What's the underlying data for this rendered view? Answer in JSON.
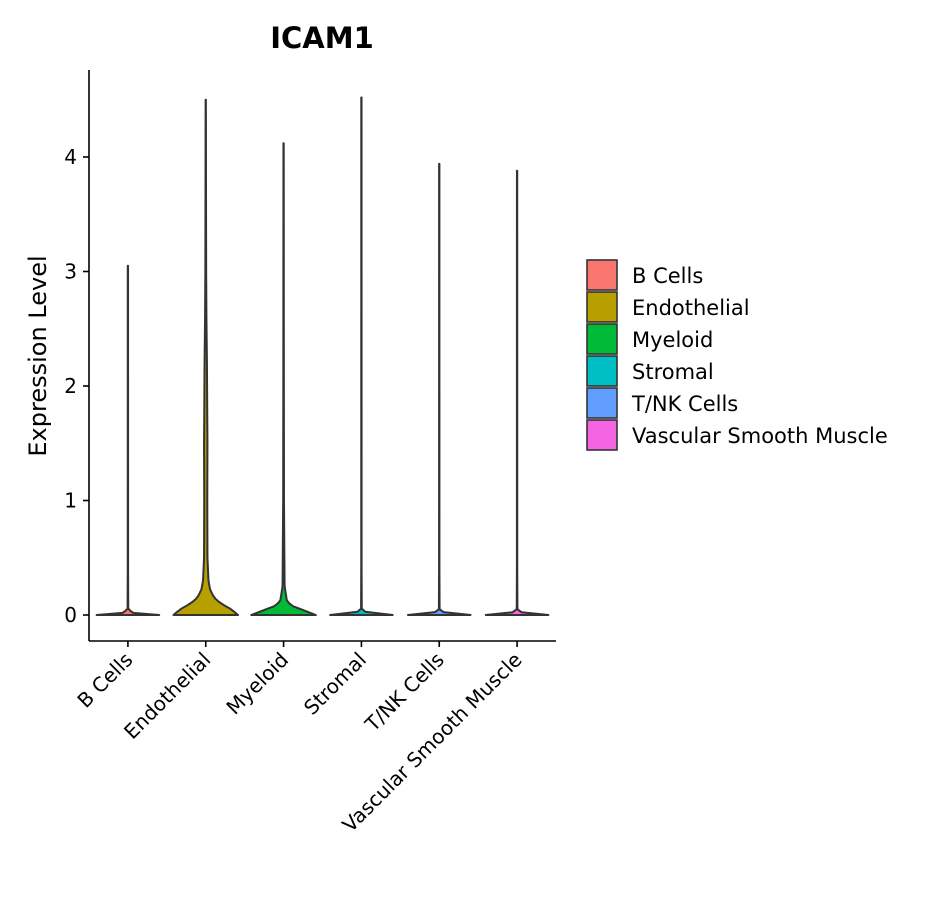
{
  "chart_data": {
    "type": "violin",
    "title": "ICAM1",
    "xlabel": "",
    "ylabel": "Expression Level",
    "ylim": [
      -0.23,
      4.75
    ],
    "yticks": [
      0,
      1,
      2,
      3,
      4
    ],
    "grid": false,
    "legend_position": "right",
    "categories": [
      "B Cells",
      "Endothelial",
      "Myeloid",
      "Stromal",
      "T/NK Cells",
      "Vascular Smooth Muscle"
    ],
    "series": [
      {
        "name": "B Cells",
        "color": "#F8766D",
        "max": 3.05,
        "profile": [
          [
            0,
            0.92
          ],
          [
            0.01,
            0.2
          ],
          [
            0.05,
            0.01
          ],
          [
            0.4,
            0.005
          ],
          [
            3.05,
            0.004
          ]
        ]
      },
      {
        "name": "Endothelial",
        "color": "#B79F00",
        "max": 4.5,
        "profile": [
          [
            0,
            0.95
          ],
          [
            0.05,
            0.75
          ],
          [
            0.1,
            0.45
          ],
          [
            0.15,
            0.25
          ],
          [
            0.22,
            0.13
          ],
          [
            0.3,
            0.08
          ],
          [
            0.5,
            0.05
          ],
          [
            1.0,
            0.045
          ],
          [
            1.5,
            0.05
          ],
          [
            1.7,
            0.045
          ],
          [
            2.2,
            0.035
          ],
          [
            2.6,
            0.02
          ],
          [
            3.0,
            0.012
          ],
          [
            3.6,
            0.008
          ],
          [
            4.5,
            0.004
          ]
        ]
      },
      {
        "name": "Myeloid",
        "color": "#00BA38",
        "max": 4.12,
        "profile": [
          [
            0,
            0.95
          ],
          [
            0.04,
            0.6
          ],
          [
            0.08,
            0.25
          ],
          [
            0.12,
            0.1
          ],
          [
            0.25,
            0.03
          ],
          [
            1.0,
            0.012
          ],
          [
            2.0,
            0.008
          ],
          [
            3.0,
            0.006
          ],
          [
            4.12,
            0.004
          ]
        ]
      },
      {
        "name": "Stromal",
        "color": "#00BFC4",
        "max": 4.52,
        "profile": [
          [
            0,
            0.92
          ],
          [
            0.01,
            0.2
          ],
          [
            0.05,
            0.01
          ],
          [
            0.4,
            0.005
          ],
          [
            4.52,
            0.004
          ]
        ]
      },
      {
        "name": "T/NK Cells",
        "color": "#619CFF",
        "max": 3.94,
        "profile": [
          [
            0,
            0.92
          ],
          [
            0.01,
            0.2
          ],
          [
            0.05,
            0.01
          ],
          [
            0.4,
            0.005
          ],
          [
            3.94,
            0.004
          ]
        ]
      },
      {
        "name": "Vascular Smooth Muscle",
        "color": "#F564E3",
        "max": 3.88,
        "profile": [
          [
            0,
            0.92
          ],
          [
            0.01,
            0.2
          ],
          [
            0.05,
            0.01
          ],
          [
            0.4,
            0.005
          ],
          [
            3.88,
            0.004
          ]
        ]
      }
    ]
  }
}
